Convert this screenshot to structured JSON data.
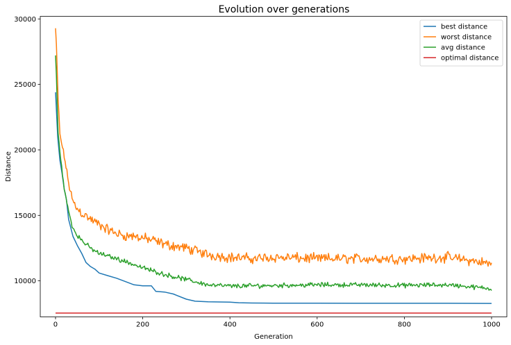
{
  "chart_data": {
    "type": "line",
    "title": "Evolution over generations",
    "xlabel": "Generation",
    "ylabel": "Distance",
    "xlim": [
      -35,
      1035
    ],
    "ylim": [
      7250,
      30200
    ],
    "xticks": [
      0,
      200,
      400,
      600,
      800,
      1000
    ],
    "yticks": [
      10000,
      15000,
      20000,
      25000,
      30000
    ],
    "grid": false,
    "legend_position": "top-right",
    "series": [
      {
        "name": "best distance",
        "color": "#1f77b4",
        "noise": 0,
        "x": [
          0,
          5,
          10,
          15,
          20,
          25,
          30,
          40,
          50,
          60,
          70,
          80,
          90,
          100,
          120,
          140,
          160,
          180,
          200,
          220,
          230,
          250,
          270,
          300,
          320,
          350,
          400,
          420,
          450,
          500,
          600,
          700,
          800,
          900,
          1000
        ],
        "y": [
          24400,
          21000,
          19200,
          18200,
          17000,
          16200,
          14700,
          13400,
          12700,
          12100,
          11400,
          11100,
          10900,
          10600,
          10400,
          10200,
          9950,
          9700,
          9620,
          9620,
          9200,
          9150,
          9000,
          8600,
          8450,
          8400,
          8380,
          8330,
          8310,
          8300,
          8300,
          8290,
          8290,
          8290,
          8280
        ]
      },
      {
        "name": "worst distance",
        "color": "#ff7f0e",
        "noise": 480,
        "x": [
          0,
          3,
          5,
          10,
          20,
          30,
          40,
          50,
          60,
          80,
          100,
          120,
          150,
          200,
          250,
          300,
          350,
          400,
          450,
          500,
          600,
          700,
          800,
          900,
          1000
        ],
        "y": [
          29300,
          27200,
          24500,
          21200,
          19500,
          17500,
          16000,
          15500,
          15200,
          14700,
          14300,
          13900,
          13500,
          13300,
          12800,
          12500,
          12000,
          11800,
          11700,
          11800,
          11700,
          11700,
          11700,
          11800,
          11300
        ]
      },
      {
        "name": "avg distance",
        "color": "#2ca02c",
        "noise": 220,
        "x": [
          0,
          3,
          5,
          10,
          20,
          30,
          40,
          50,
          60,
          80,
          100,
          150,
          200,
          250,
          300,
          350,
          400,
          500,
          600,
          700,
          800,
          900,
          1000
        ],
        "y": [
          27200,
          25000,
          21600,
          19900,
          17000,
          15300,
          14000,
          13500,
          13100,
          12500,
          12100,
          11600,
          11000,
          10500,
          10100,
          9700,
          9600,
          9650,
          9700,
          9700,
          9650,
          9700,
          9400
        ]
      },
      {
        "name": "optimal distance",
        "color": "#d62728",
        "noise": 0,
        "x": [
          0,
          1000
        ],
        "y": [
          7542,
          7542
        ]
      }
    ]
  }
}
